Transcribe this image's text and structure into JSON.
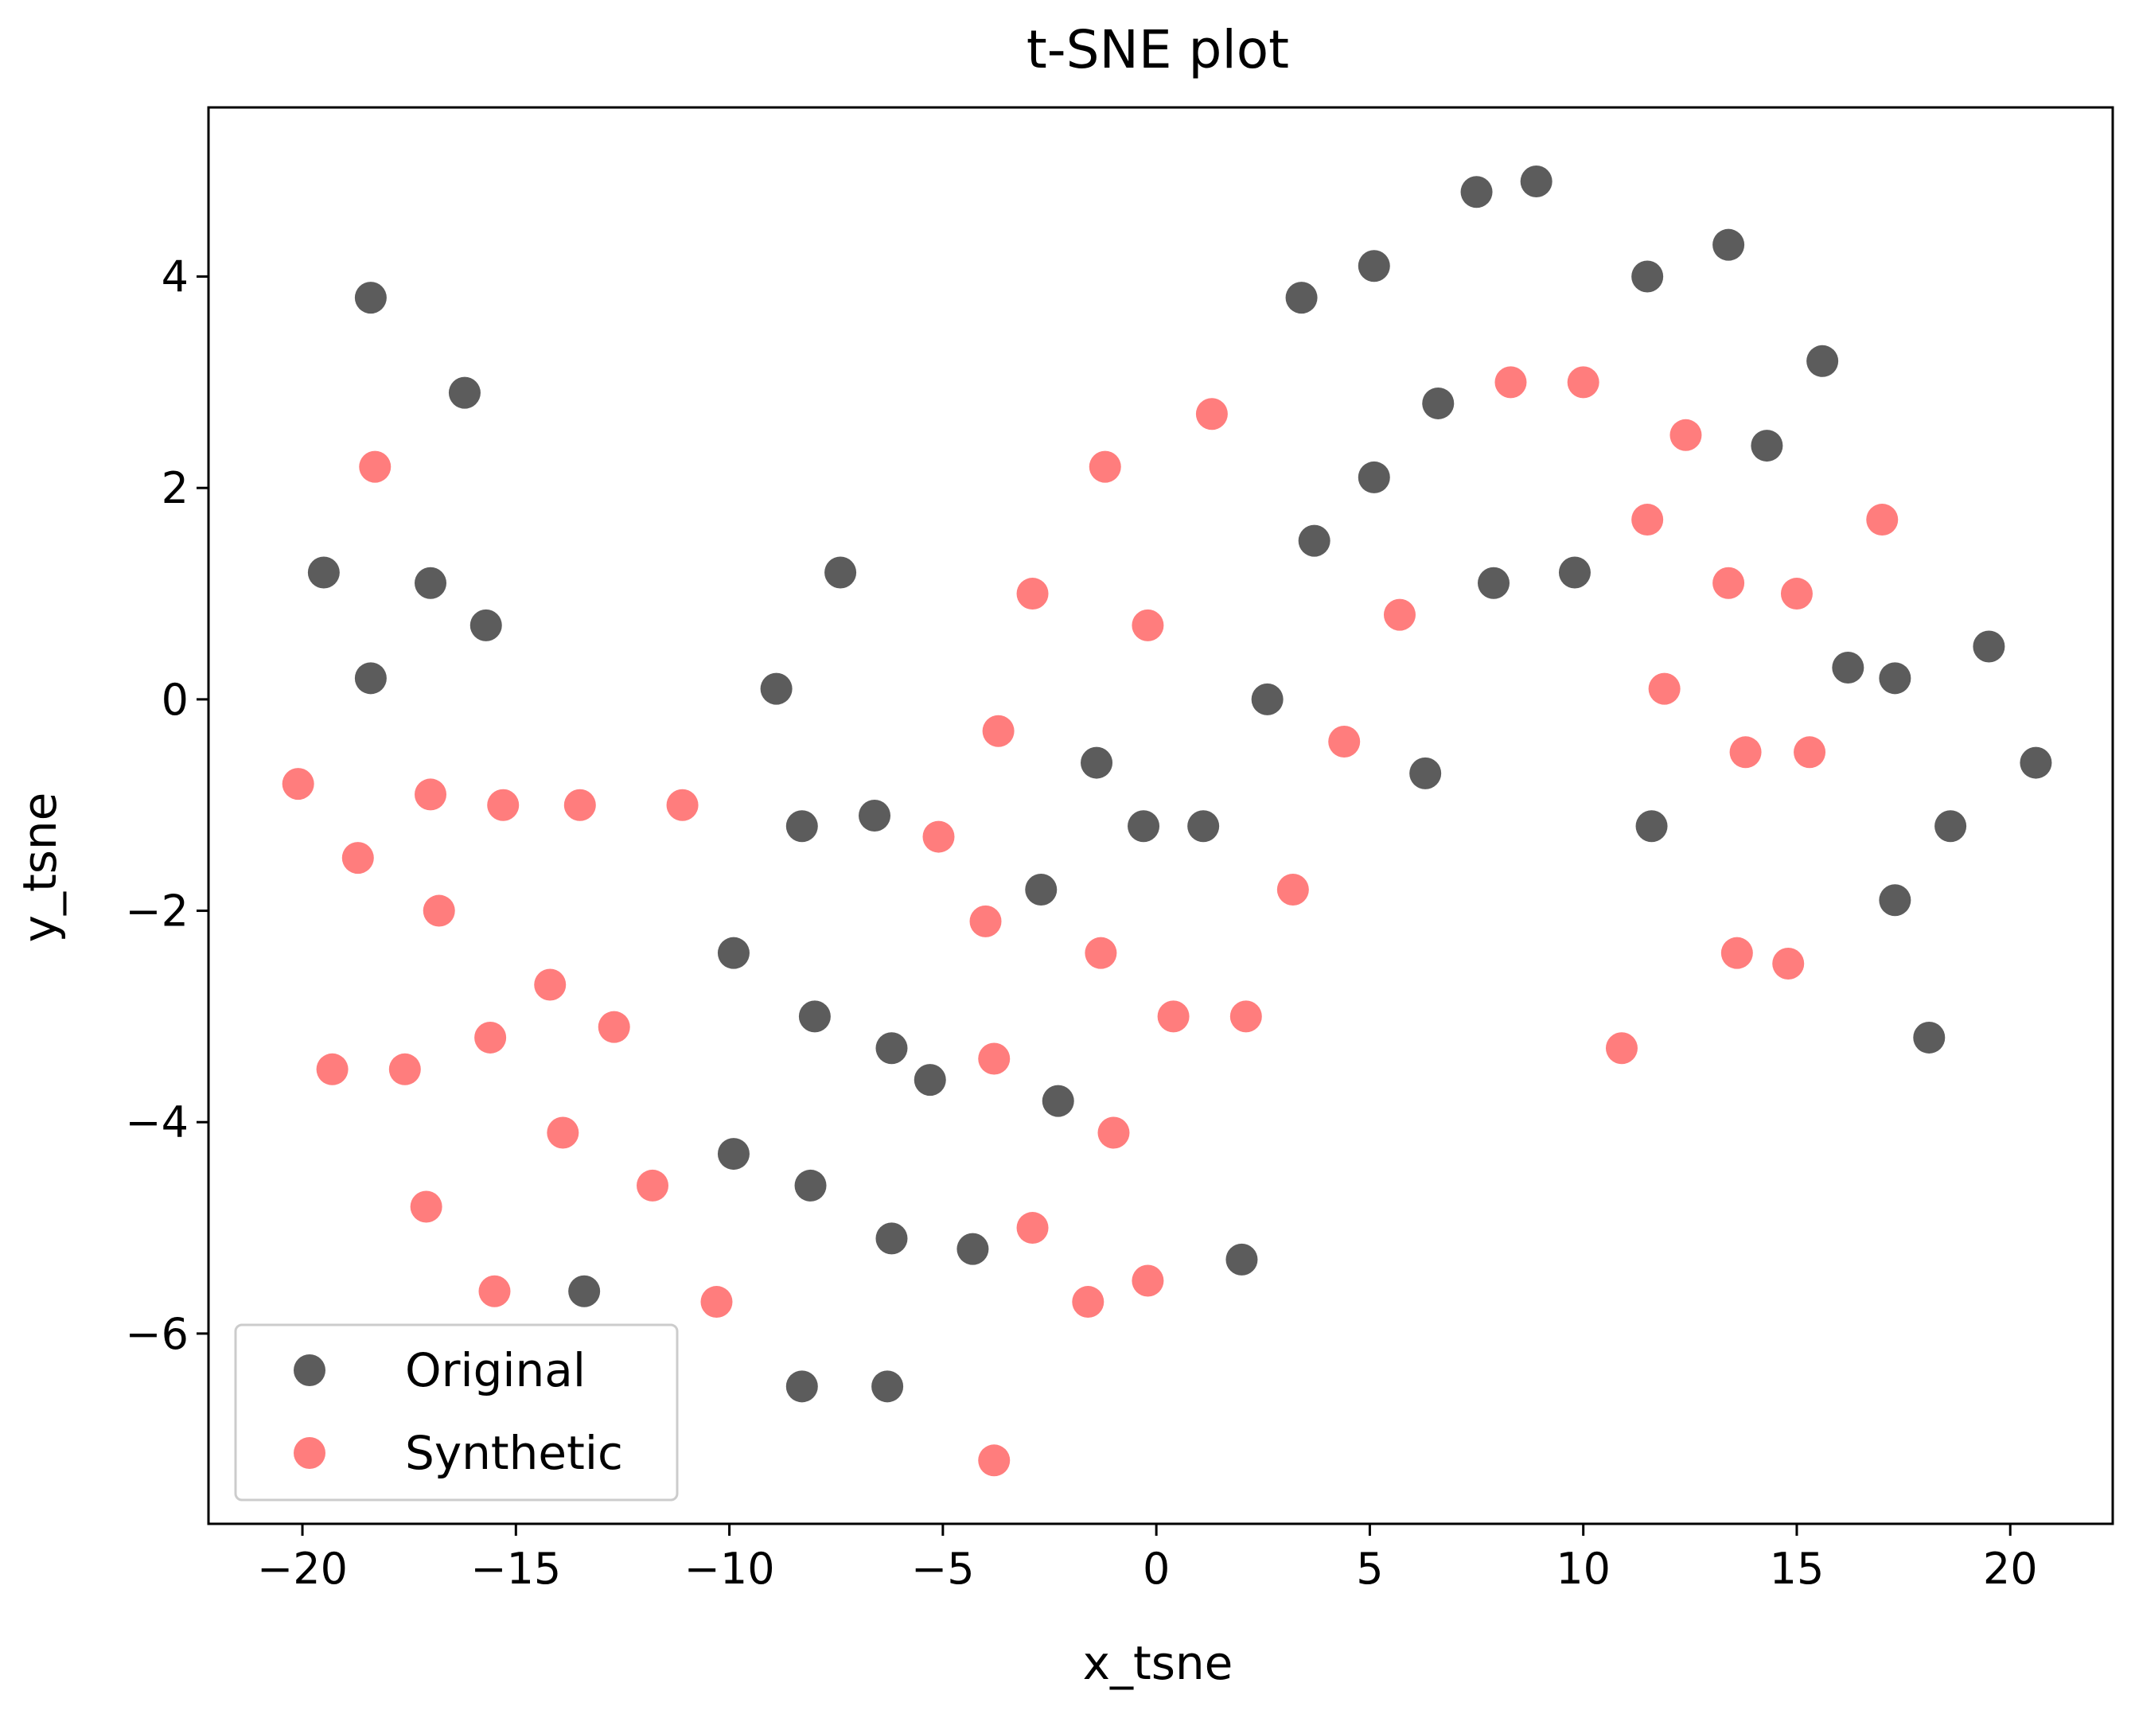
{
  "chart_data": {
    "type": "scatter",
    "title": "t-SNE plot",
    "xlabel": "x_tsne",
    "ylabel": "y_tsne",
    "xlim": [
      -22.2,
      22.4
    ],
    "ylim": [
      -7.8,
      5.6
    ],
    "xticks": [
      -20,
      -15,
      -10,
      -5,
      0,
      5,
      10,
      15,
      20
    ],
    "yticks": [
      -6,
      -4,
      -2,
      0,
      2,
      4
    ],
    "tick_labels_x": [
      "−20",
      "−15",
      "−10",
      "−5",
      "0",
      "5",
      "10",
      "15",
      "20"
    ],
    "tick_labels_y": [
      "−6",
      "−4",
      "−2",
      "0",
      "2",
      "4"
    ],
    "grid": false,
    "legend_position": "lower-left",
    "series": [
      {
        "name": "Original",
        "color": "#404040",
        "points": [
          [
            -18.4,
            3.8
          ],
          [
            -16.2,
            2.9
          ],
          [
            -19.5,
            1.2
          ],
          [
            -17.0,
            1.1
          ],
          [
            -15.7,
            0.7
          ],
          [
            -18.4,
            0.2
          ],
          [
            -7.4,
            1.2
          ],
          [
            -8.9,
            0.1
          ],
          [
            -8.3,
            -1.2
          ],
          [
            -6.6,
            -1.1
          ],
          [
            -9.9,
            -2.4
          ],
          [
            -8.0,
            -3.0
          ],
          [
            -6.2,
            -3.3
          ],
          [
            -5.3,
            -3.6
          ],
          [
            -9.9,
            -4.3
          ],
          [
            -8.1,
            -4.6
          ],
          [
            -6.2,
            -5.1
          ],
          [
            -4.3,
            -5.2
          ],
          [
            -13.4,
            -5.6
          ],
          [
            -8.3,
            -6.5
          ],
          [
            -6.3,
            -6.5
          ],
          [
            -2.7,
            -1.8
          ],
          [
            -2.3,
            -3.8
          ],
          [
            -1.4,
            -0.6
          ],
          [
            -0.3,
            -1.2
          ],
          [
            1.1,
            -1.2
          ],
          [
            2.6,
            0.0
          ],
          [
            2.0,
            -5.3
          ],
          [
            3.4,
            3.8
          ],
          [
            3.7,
            1.5
          ],
          [
            5.1,
            4.1
          ],
          [
            5.1,
            2.1
          ],
          [
            6.6,
            2.8
          ],
          [
            6.3,
            -0.7
          ],
          [
            7.5,
            4.8
          ],
          [
            7.9,
            1.1
          ],
          [
            8.9,
            4.9
          ],
          [
            9.8,
            1.2
          ],
          [
            11.5,
            4.0
          ],
          [
            11.6,
            -1.2
          ],
          [
            13.4,
            4.3
          ],
          [
            14.3,
            2.4
          ],
          [
            15.6,
            3.2
          ],
          [
            16.2,
            0.3
          ],
          [
            17.3,
            0.2
          ],
          [
            17.3,
            -1.9
          ],
          [
            18.6,
            -1.2
          ],
          [
            18.1,
            -3.2
          ],
          [
            19.5,
            0.5
          ],
          [
            20.6,
            -0.6
          ]
        ]
      },
      {
        "name": "Synthetic",
        "color": "#ff6666",
        "points": [
          [
            -18.3,
            2.2
          ],
          [
            -20.1,
            -0.8
          ],
          [
            -18.7,
            -1.5
          ],
          [
            -17.0,
            -0.9
          ],
          [
            -16.8,
            -2.0
          ],
          [
            -15.3,
            -1.0
          ],
          [
            -13.5,
            -1.0
          ],
          [
            -11.1,
            -1.0
          ],
          [
            -19.3,
            -3.5
          ],
          [
            -17.6,
            -3.5
          ],
          [
            -15.6,
            -3.2
          ],
          [
            -14.2,
            -2.7
          ],
          [
            -12.7,
            -3.1
          ],
          [
            -13.9,
            -4.1
          ],
          [
            -11.8,
            -4.6
          ],
          [
            -17.1,
            -4.8
          ],
          [
            -15.5,
            -5.6
          ],
          [
            -10.3,
            -5.7
          ],
          [
            -5.1,
            -1.3
          ],
          [
            -3.7,
            -0.3
          ],
          [
            -4.0,
            -2.1
          ],
          [
            -3.8,
            -3.4
          ],
          [
            -2.9,
            1.0
          ],
          [
            -1.2,
            2.2
          ],
          [
            -1.3,
            -2.4
          ],
          [
            -1.0,
            -4.1
          ],
          [
            -2.9,
            -5.0
          ],
          [
            -1.6,
            -5.7
          ],
          [
            -0.2,
            -5.5
          ],
          [
            -3.8,
            -7.2
          ],
          [
            -0.2,
            0.7
          ],
          [
            0.4,
            -3.0
          ],
          [
            1.3,
            2.7
          ],
          [
            2.1,
            -3.0
          ],
          [
            3.2,
            -1.8
          ],
          [
            4.4,
            -0.4
          ],
          [
            5.7,
            0.8
          ],
          [
            8.3,
            3.0
          ],
          [
            10.0,
            3.0
          ],
          [
            11.5,
            1.7
          ],
          [
            11.9,
            0.1
          ],
          [
            12.4,
            2.5
          ],
          [
            13.4,
            1.1
          ],
          [
            13.8,
            -0.5
          ],
          [
            15.0,
            1.0
          ],
          [
            15.3,
            -0.5
          ],
          [
            13.6,
            -2.4
          ],
          [
            14.8,
            -2.5
          ],
          [
            10.9,
            -3.3
          ],
          [
            17.0,
            1.7
          ]
        ]
      }
    ]
  }
}
